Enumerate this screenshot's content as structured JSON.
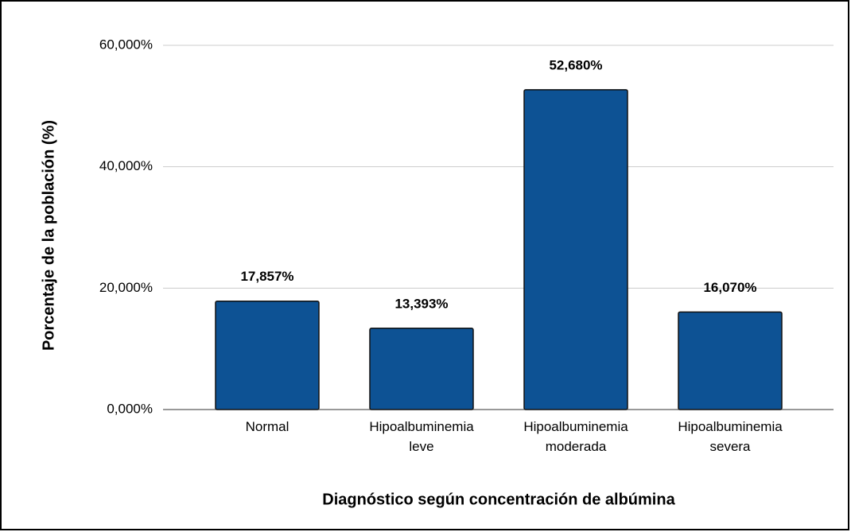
{
  "chart_data": {
    "type": "bar",
    "categories": [
      "Normal",
      "Hipoalbuminemia leve",
      "Hipoalbuminemia moderada",
      "Hipoalbuminemia severa"
    ],
    "values": [
      17.857,
      13.393,
      52.68,
      16.07
    ],
    "value_labels": [
      "17,857%",
      "13,393%",
      "52,680%",
      "16,070%"
    ],
    "color": "#0d5294",
    "ylim": [
      0,
      60
    ],
    "yticks": [
      {
        "value": 0,
        "label": "0,000%"
      },
      {
        "value": 20,
        "label": "20,000%"
      },
      {
        "value": 40,
        "label": "40,000%"
      },
      {
        "value": 60,
        "label": "60,000%"
      }
    ],
    "grid": true,
    "xlabel": "Diagnóstico según concentración de albúmina",
    "ylabel": "Porcentaje de la población (%)"
  }
}
